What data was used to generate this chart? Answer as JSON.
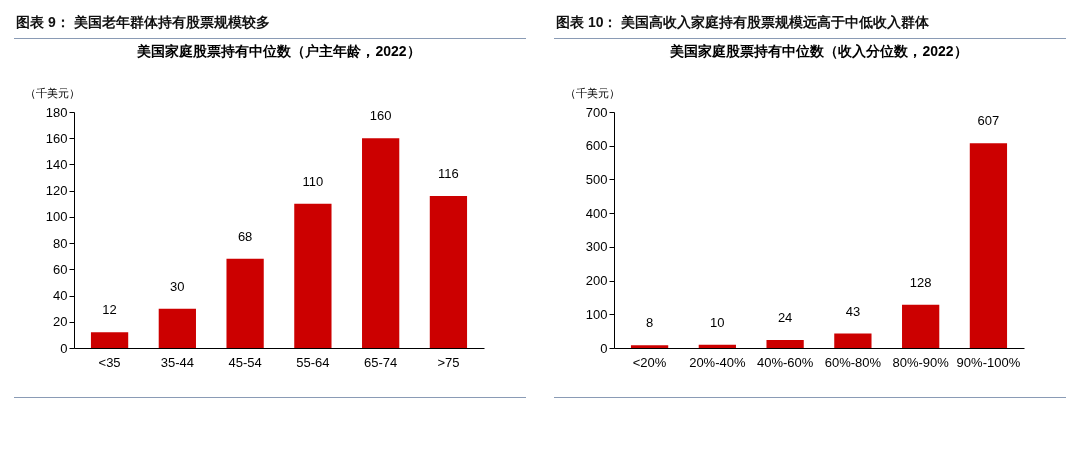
{
  "chart_data": [
    {
      "type": "bar",
      "title": "图表 9：   美国老年群体持有股票规模较多",
      "subtitle": "美国家庭股票持有中位数（户主年龄，2022）",
      "ylabel": "（千美元）",
      "categories": [
        "<35",
        "35-44",
        "45-54",
        "55-64",
        "65-74",
        ">75"
      ],
      "values": [
        12,
        30,
        68,
        110,
        160,
        116
      ],
      "color": "#cc0000",
      "ylim": [
        0,
        180
      ],
      "yticks": [
        0,
        20,
        40,
        60,
        80,
        100,
        120,
        140,
        160,
        180
      ],
      "data_labels": true,
      "grid": false
    },
    {
      "type": "bar",
      "title": "图表 10：   美国高收入家庭持有股票规模远高于中低收入群体",
      "subtitle": "美国家庭股票持有中位数（收入分位数，2022）",
      "ylabel": "（千美元）",
      "categories": [
        "<20%",
        "20%-40%",
        "40%-60%",
        "60%-80%",
        "80%-90%",
        "90%-100%"
      ],
      "values": [
        8,
        10,
        24,
        43,
        128,
        607
      ],
      "color": "#cc0000",
      "ylim": [
        0,
        700
      ],
      "yticks": [
        0,
        100,
        200,
        300,
        400,
        500,
        600,
        700
      ],
      "data_labels": true,
      "grid": false
    }
  ]
}
